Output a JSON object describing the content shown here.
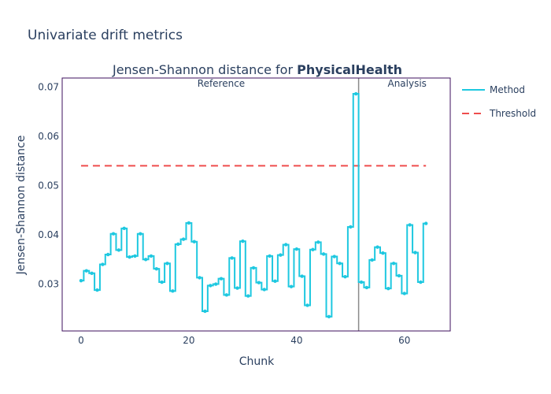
{
  "figure_title": "Univariate drift metrics",
  "chart_data": {
    "type": "line",
    "title_prefix": "Jensen-Shannon distance for ",
    "title_feature": "PhysicalHealth",
    "xlabel": "Chunk",
    "ylabel": "Jensen-Shannon distance",
    "xlim": [
      -3.5,
      68.5
    ],
    "ylim": [
      0.0205,
      0.0718
    ],
    "xticks": [
      0,
      20,
      40,
      60
    ],
    "yticks": [
      0.03,
      0.04,
      0.05,
      0.06,
      0.07
    ],
    "ytick_labels": [
      "0.03",
      "0.04",
      "0.05",
      "0.06",
      "0.07"
    ],
    "grid": false,
    "legend_position": "right",
    "step_type": "mid",
    "series": [
      {
        "name": "Method",
        "color": "#1ec8e0",
        "x": [
          0,
          1,
          2,
          3,
          4,
          5,
          6,
          7,
          8,
          9,
          10,
          11,
          12,
          13,
          14,
          15,
          16,
          17,
          18,
          19,
          20,
          21,
          22,
          23,
          24,
          25,
          26,
          27,
          28,
          29,
          30,
          31,
          32,
          33,
          34,
          35,
          36,
          37,
          38,
          39,
          40,
          41,
          42,
          43,
          44,
          45,
          46,
          47,
          48,
          49,
          50,
          51,
          52,
          53,
          54,
          55,
          56,
          57,
          58,
          59,
          60,
          61,
          62,
          63,
          64
        ],
        "values": [
          0.0307,
          0.0327,
          0.0322,
          0.0288,
          0.034,
          0.036,
          0.0402,
          0.0369,
          0.0413,
          0.0355,
          0.0357,
          0.0402,
          0.035,
          0.0357,
          0.0331,
          0.0304,
          0.0342,
          0.0286,
          0.0381,
          0.0391,
          0.0424,
          0.0386,
          0.0313,
          0.0245,
          0.0297,
          0.03,
          0.0311,
          0.0278,
          0.0353,
          0.0292,
          0.0387,
          0.0276,
          0.0333,
          0.0303,
          0.0289,
          0.0357,
          0.0306,
          0.0359,
          0.038,
          0.0295,
          0.0371,
          0.0316,
          0.0257,
          0.037,
          0.0385,
          0.0361,
          0.0234,
          0.0356,
          0.0342,
          0.0315,
          0.0416,
          0.0686,
          0.0304,
          0.0293,
          0.0349,
          0.0375,
          0.0363,
          0.0291,
          0.0342,
          0.0317,
          0.0281,
          0.042,
          0.0364,
          0.0304,
          0.0423
        ]
      },
      {
        "name": "Threshold",
        "color": "#ef4d4d",
        "dash": "dashed",
        "x": [
          0,
          64
        ],
        "values": [
          0.054,
          0.054
        ]
      }
    ],
    "divider_x": 51.5,
    "regions": [
      {
        "label": "Reference",
        "x": 26
      },
      {
        "label": "Analysis",
        "x": 60.5
      }
    ]
  },
  "colors": {
    "frame": "#3d0f5c",
    "divider": "#8a8a8a",
    "text": "#2a3f5f"
  }
}
